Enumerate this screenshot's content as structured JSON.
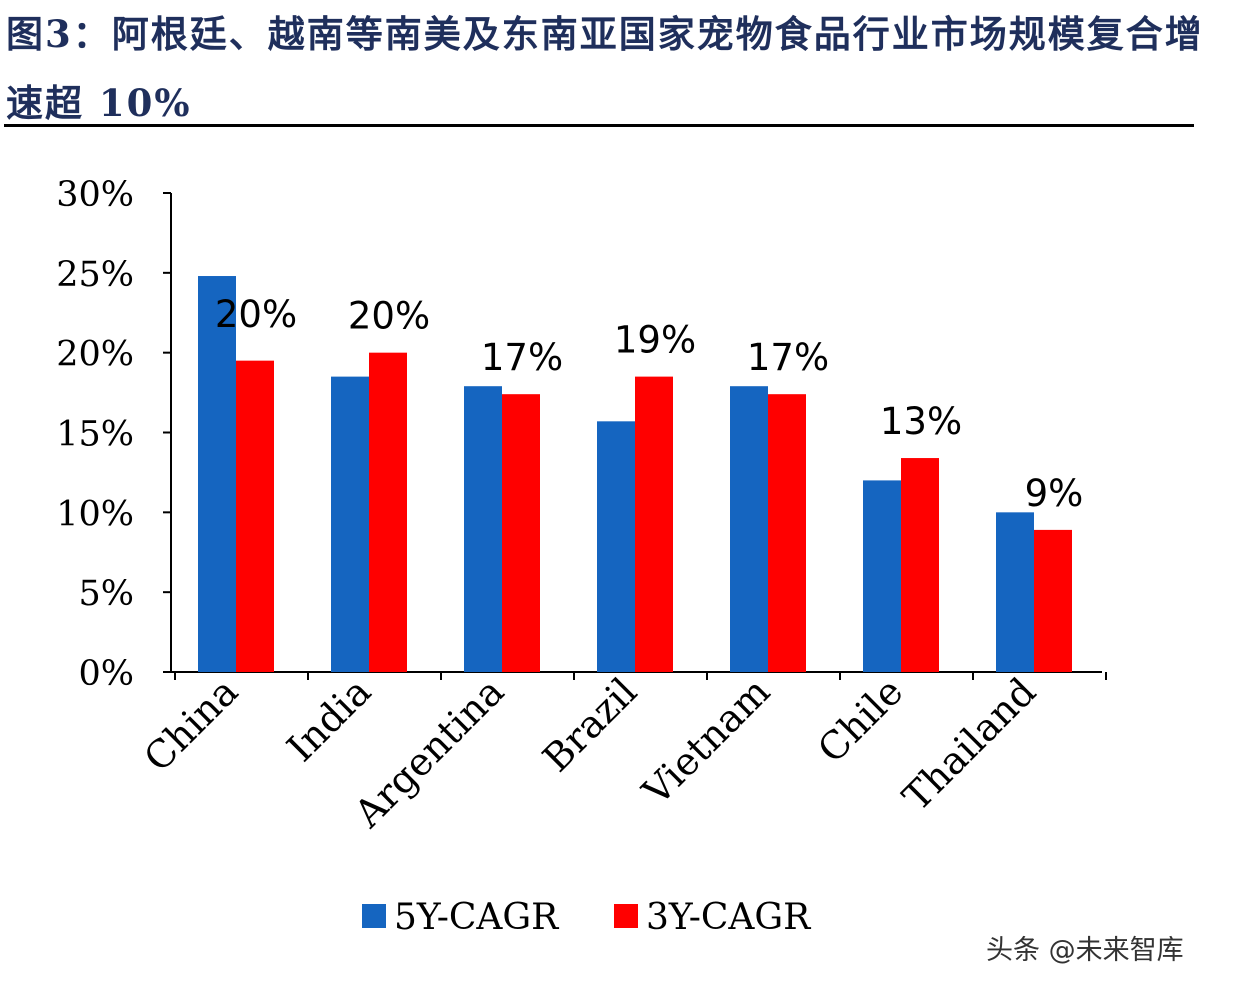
{
  "title": "图3：阿根廷、越南等南美及东南亚国家宠物食品行业市场规模复合增速超 10%",
  "watermark": "头条 @未来智库",
  "chart_data": {
    "type": "bar",
    "categories": [
      "China",
      "India",
      "Argentina",
      "Brazil",
      "Vietnam",
      "Chile",
      "Thailand"
    ],
    "series": [
      {
        "name": "5Y-CAGR",
        "color": "#1565c0",
        "values": [
          24.8,
          18.5,
          17.9,
          15.7,
          17.9,
          12.0,
          10.0
        ]
      },
      {
        "name": "3Y-CAGR",
        "color": "#ff0000",
        "values": [
          19.5,
          20.0,
          17.4,
          18.5,
          17.4,
          13.4,
          8.9
        ]
      }
    ],
    "data_labels": [
      "20%",
      "20%",
      "17%",
      "19%",
      "17%",
      "13%",
      "9%"
    ],
    "ylim": [
      0,
      30
    ],
    "yticks": [
      "0%",
      "5%",
      "10%",
      "15%",
      "20%",
      "25%",
      "30%"
    ],
    "grid": false,
    "legend_position": "bottom"
  }
}
